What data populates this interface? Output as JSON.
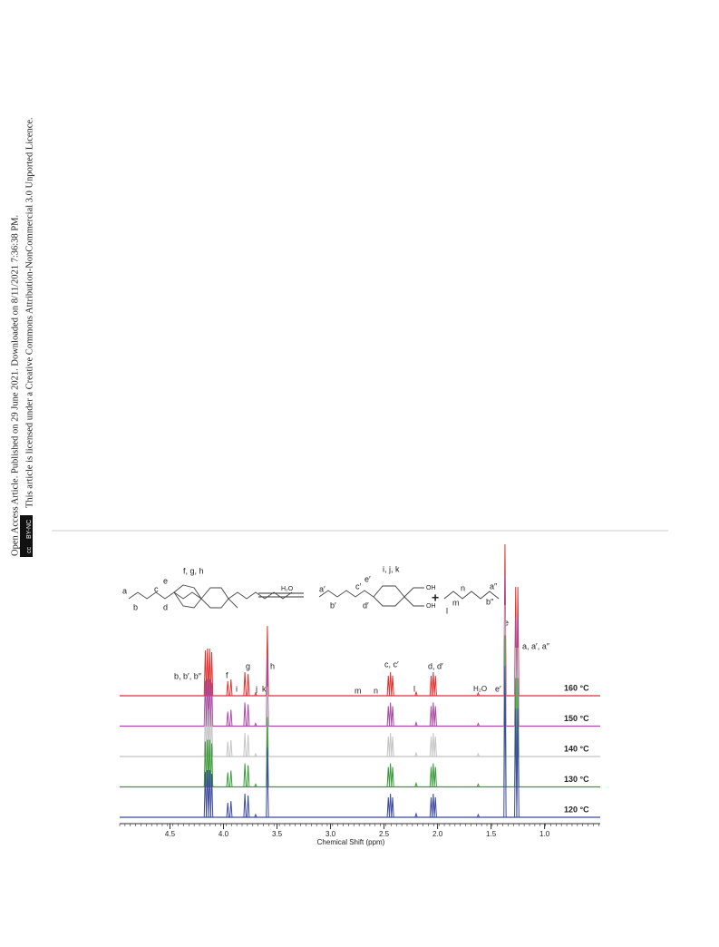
{
  "sidebar": {
    "line1": "Open Access Article. Published on 29 June 2021. Downloaded on 8/11/2021 7:36:38 PM.",
    "line2": "This article is licensed under a Creative Commons Attribution-NonCommercial 3.0 Unported Licence.",
    "badge_cc": "cc",
    "badge_text": "BY-NC"
  },
  "scheme": {
    "left_labels": [
      "a",
      "b",
      "c",
      "d",
      "e",
      "f, g, h"
    ],
    "reagent": "H₂O",
    "right_labels": [
      "a′",
      "b′",
      "c′",
      "d′",
      "e′",
      "i, j, k",
      "OH",
      "OH"
    ],
    "plus": "+",
    "third_labels": [
      "l",
      "m",
      "n",
      "a″",
      "b″"
    ]
  },
  "spectrum": {
    "xlabel": "Chemical Shift (ppm)",
    "xlim": [
      4.97,
      0.48
    ],
    "xticks": [
      {
        "value": 4.5,
        "label": "4.5"
      },
      {
        "value": 4.0,
        "label": "4.0"
      },
      {
        "value": 3.5,
        "label": "3.5"
      },
      {
        "value": 3.0,
        "label": "3.0"
      },
      {
        "value": 2.5,
        "label": "2.5"
      },
      {
        "value": 2.0,
        "label": "2.0"
      },
      {
        "value": 1.5,
        "label": "1.5"
      },
      {
        "value": 1.0,
        "label": "1.0"
      }
    ],
    "series": [
      {
        "name": "160 °C",
        "color": "#e3312f"
      },
      {
        "name": "150 °C",
        "color": "#a94aa5"
      },
      {
        "name": "140 °C",
        "color": "#c4c4c4"
      },
      {
        "name": "130 °C",
        "color": "#3a9a3a"
      },
      {
        "name": "120 °C",
        "color": "#3c4aa0"
      }
    ],
    "peaks": {
      "shift": [
        4.17,
        4.15,
        4.13,
        4.11,
        3.96,
        3.93,
        3.8,
        3.77,
        3.7,
        3.59,
        2.46,
        2.44,
        2.42,
        2.2,
        2.06,
        2.04,
        2.02,
        1.62,
        1.37,
        1.27,
        1.25
      ],
      "height": [
        50,
        52,
        52,
        48,
        16,
        18,
        26,
        24,
        3,
        77,
        22,
        26,
        22,
        4,
        22,
        26,
        22,
        3,
        167,
        120,
        120
      ]
    },
    "peak_labels": [
      "b, b′, b″",
      "f",
      "i",
      "g",
      "j",
      "k",
      "h",
      "m",
      "n",
      "c, c′",
      "l",
      "d, d′",
      "H₂O",
      "e′",
      "e",
      "a, a′, a″"
    ]
  }
}
